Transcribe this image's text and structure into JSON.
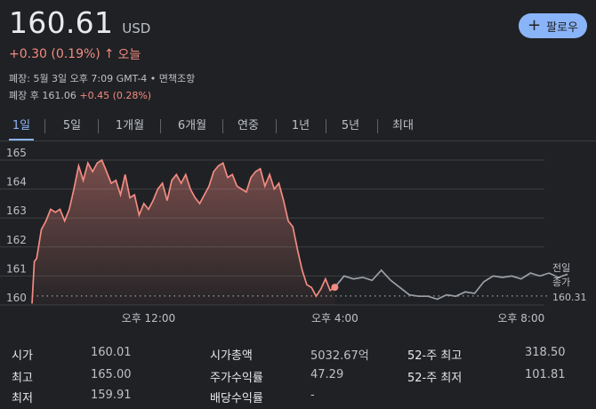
{
  "quote": {
    "price": "160.61",
    "currency": "USD",
    "change": "+0.30 (0.19%)",
    "change_arrow": "↑",
    "period": "오늘",
    "meta_line": "폐장: 5월 3일 오후 7:09 GMT-4 • 면책조항",
    "after_hours_label": "폐장 후",
    "after_hours_price": "161.06",
    "after_hours_change": "+0.45 (0.28%)"
  },
  "follow_button": {
    "label": "팔로우",
    "icon": "plus-icon"
  },
  "tabs": [
    "1일",
    "5일",
    "1개월",
    "6개월",
    "연중",
    "1년",
    "5년",
    "최대"
  ],
  "active_tab": "1일",
  "colors": {
    "accent": "#8ab4f8",
    "negative_line": "#f28b82",
    "after_hours_line": "#9aa0a6",
    "background": "#202124"
  },
  "chart_data": {
    "type": "area",
    "y_ticks": [
      "165",
      "164",
      "163",
      "162",
      "161",
      "160"
    ],
    "x_ticks": [
      "오후 12:00",
      "오후 4:00",
      "오후 8:00"
    ],
    "ylim": [
      160,
      165.2
    ],
    "prev_close_label": [
      "전일",
      "종가",
      "160.31"
    ],
    "prev_close": 160.31,
    "regular_session": {
      "x_hours": [
        9.5,
        9.55,
        9.6,
        9.7,
        9.8,
        9.9,
        10.0,
        10.1,
        10.2,
        10.3,
        10.4,
        10.5,
        10.6,
        10.7,
        10.8,
        10.9,
        11.0,
        11.1,
        11.2,
        11.3,
        11.4,
        11.5,
        11.6,
        11.7,
        11.8,
        11.9,
        12.0,
        12.1,
        12.2,
        12.3,
        12.4,
        12.5,
        12.6,
        12.7,
        12.8,
        12.9,
        13.0,
        13.1,
        13.2,
        13.3,
        13.4,
        13.5,
        13.6,
        13.7,
        13.8,
        13.9,
        14.0,
        14.1,
        14.2,
        14.3,
        14.4,
        14.5,
        14.6,
        14.7,
        14.8,
        14.9,
        15.0,
        15.1,
        15.2,
        15.3,
        15.4,
        15.5,
        15.6,
        15.7,
        15.8,
        15.9,
        16.0
      ],
      "values": [
        160.05,
        161.5,
        161.6,
        162.6,
        162.9,
        163.3,
        163.2,
        163.3,
        162.9,
        163.3,
        164.0,
        164.8,
        164.3,
        164.9,
        164.6,
        164.9,
        165.0,
        164.6,
        164.2,
        164.3,
        163.8,
        164.5,
        163.7,
        163.8,
        163.1,
        163.5,
        163.3,
        163.6,
        164.0,
        164.2,
        163.6,
        164.3,
        164.5,
        164.2,
        164.5,
        164.0,
        163.7,
        163.5,
        163.8,
        164.1,
        164.6,
        164.8,
        164.9,
        164.4,
        164.5,
        164.1,
        164.0,
        163.9,
        164.4,
        164.6,
        164.7,
        164.1,
        164.5,
        164.0,
        164.2,
        163.6,
        162.9,
        162.7,
        161.9,
        161.2,
        160.7,
        160.6,
        160.3,
        160.55,
        160.9,
        160.5,
        160.61
      ]
    },
    "after_hours": {
      "x_hours": [
        16.0,
        16.2,
        16.4,
        16.6,
        16.8,
        17.0,
        17.2,
        17.4,
        17.6,
        17.8,
        18.0,
        18.2,
        18.4,
        18.6,
        18.8,
        19.0,
        19.2,
        19.4,
        19.6,
        19.8,
        20.0,
        20.2,
        20.4,
        20.6,
        20.8,
        21.0
      ],
      "values": [
        160.61,
        161.0,
        160.9,
        160.95,
        160.85,
        161.2,
        160.85,
        160.6,
        160.35,
        160.3,
        160.3,
        160.2,
        160.35,
        160.3,
        160.45,
        160.4,
        160.8,
        161.0,
        160.95,
        161.0,
        160.9,
        161.1,
        161.0,
        161.1,
        160.95,
        161.06
      ]
    }
  },
  "stats": [
    {
      "label": "시가",
      "value": "160.01"
    },
    {
      "label": "최고",
      "value": "165.00"
    },
    {
      "label": "최저",
      "value": "159.91"
    },
    {
      "label": "시가총액",
      "value": "5032.67억"
    },
    {
      "label": "주가수익률",
      "value": "47.29"
    },
    {
      "label": "배당수익률",
      "value": "-"
    },
    {
      "label": "52-주 최고",
      "value": "318.50"
    },
    {
      "label": "52-주 최저",
      "value": "101.81"
    }
  ]
}
